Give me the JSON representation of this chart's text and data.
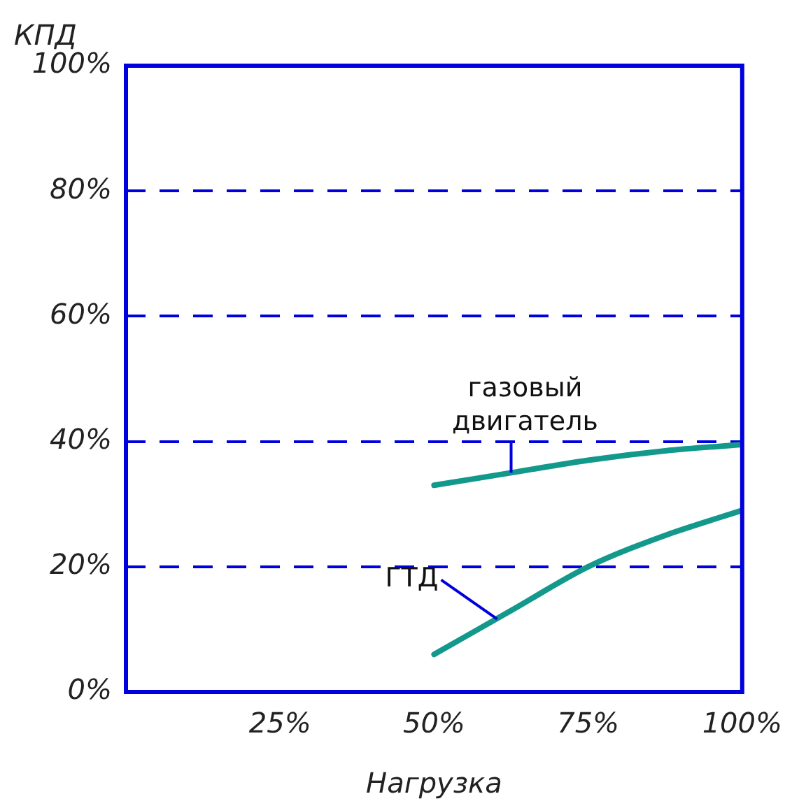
{
  "chart_data": {
    "type": "line",
    "xlabel": "Нагрузка",
    "ylabel": "КПД",
    "xlim": [
      0,
      100
    ],
    "xticks": [
      {
        "value": 0,
        "label": null
      },
      {
        "value": 25,
        "label": "25%"
      },
      {
        "value": 50,
        "label": "50%"
      },
      {
        "value": 75,
        "label": "75%"
      },
      {
        "value": 100,
        "label": "100%"
      }
    ],
    "ylim": [
      0,
      100
    ],
    "yticks": [
      {
        "value": 0,
        "label": "0%"
      },
      {
        "value": 20,
        "label": "20%"
      },
      {
        "value": 40,
        "label": "40%"
      },
      {
        "value": 60,
        "label": "60%"
      },
      {
        "value": 80,
        "label": "80%"
      },
      {
        "value": 100,
        "label": "100%"
      }
    ],
    "grid": "y",
    "legend": false,
    "marker": "none",
    "line_style": "solid",
    "series": [
      {
        "name": "газовый двигатель",
        "color": "#12998c",
        "x": [
          50,
          62.5,
          75,
          87.5,
          100
        ],
        "values": [
          33,
          35,
          37,
          38.5,
          39.5
        ]
      },
      {
        "name": "ГТД",
        "color": "#12998c",
        "x": [
          50,
          62.5,
          75,
          87.5,
          100
        ],
        "values": [
          6,
          13,
          20,
          25,
          29
        ]
      }
    ]
  }
}
